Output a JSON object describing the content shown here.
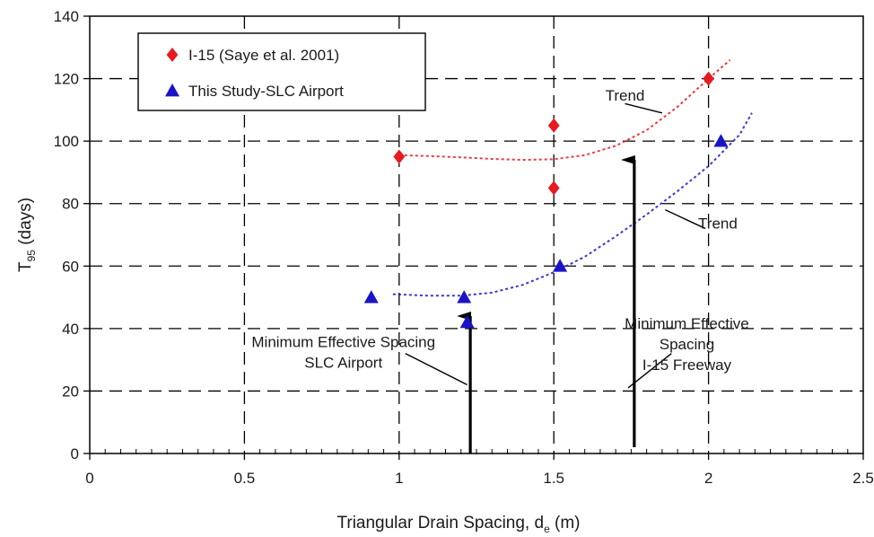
{
  "chart_data": {
    "type": "scatter",
    "title": "",
    "xlabel": "Triangular Drain Spacing, d",
    "xlabel_sub": "e",
    "xlabel_unit": " (m)",
    "ylabel": "T",
    "ylabel_sub": "95",
    "ylabel_unit": " (days)",
    "xlim": [
      0,
      2.5
    ],
    "ylim": [
      0,
      140
    ],
    "xticks": [
      "0",
      "0.5",
      "1",
      "1.5",
      "2",
      "2.5"
    ],
    "xtick_values": [
      0,
      0.5,
      1,
      1.5,
      2,
      2.5
    ],
    "yticks": [
      "0",
      "20",
      "40",
      "60",
      "80",
      "100",
      "120",
      "140"
    ],
    "ytick_values": [
      0,
      20,
      40,
      60,
      80,
      100,
      120,
      140
    ],
    "grid": true,
    "legend_position": "top-left",
    "series": [
      {
        "name": "I-15 (Saye et al. 2001)",
        "marker": "diamond",
        "color": "#e8191f",
        "x": [
          1.0,
          1.5,
          1.5,
          2.0
        ],
        "y": [
          95,
          105,
          85,
          120
        ],
        "trend_x": [
          1.0,
          1.1,
          1.2,
          1.3,
          1.4,
          1.5,
          1.6,
          1.7,
          1.8,
          1.9,
          2.0,
          2.07
        ],
        "trend_y": [
          95.5,
          95.2,
          94.8,
          94.3,
          94.0,
          94.2,
          95.5,
          98.5,
          103.5,
          111,
          120,
          126
        ]
      },
      {
        "name": "This Study-SLC Airport",
        "marker": "triangle",
        "color": "#1a14c8",
        "x": [
          0.91,
          1.21,
          1.22,
          1.52,
          2.04
        ],
        "y": [
          50,
          50,
          42,
          60,
          100
        ],
        "trend_x": [
          0.98,
          1.1,
          1.2,
          1.3,
          1.4,
          1.5,
          1.6,
          1.7,
          1.8,
          1.9,
          2.0,
          2.1,
          2.14
        ],
        "trend_y": [
          51,
          50.5,
          50.5,
          51.5,
          54,
          58,
          63,
          69.5,
          76.5,
          84,
          92,
          102,
          109
        ]
      }
    ],
    "annotations": [
      {
        "text": "Trend",
        "x": 1.73,
        "y": 113
      },
      {
        "text": "Trend",
        "x": 2.03,
        "y": 72
      },
      {
        "lines": [
          "Minimum Effective Spacing",
          "SLC Airport"
        ],
        "x": 0.82,
        "y": 34
      },
      {
        "lines": [
          "Minimum Effective",
          "Spacing",
          "I-15 Freeway"
        ],
        "x": 1.93,
        "y": 40
      }
    ],
    "arrows": [
      {
        "x": 1.23,
        "y_from": 0,
        "y_to": 44
      },
      {
        "x": 1.76,
        "y_from": 2,
        "y_to": 94
      }
    ],
    "leaders": [
      {
        "x1": 1.73,
        "y1": 112,
        "x2": 1.85,
        "y2": 109
      },
      {
        "x1": 1.99,
        "y1": 72,
        "x2": 1.86,
        "y2": 78
      },
      {
        "x1": 1.02,
        "y1": 32,
        "x2": 1.22,
        "y2": 22
      },
      {
        "x1": 1.88,
        "y1": 32,
        "x2": 1.74,
        "y2": 21
      }
    ]
  }
}
